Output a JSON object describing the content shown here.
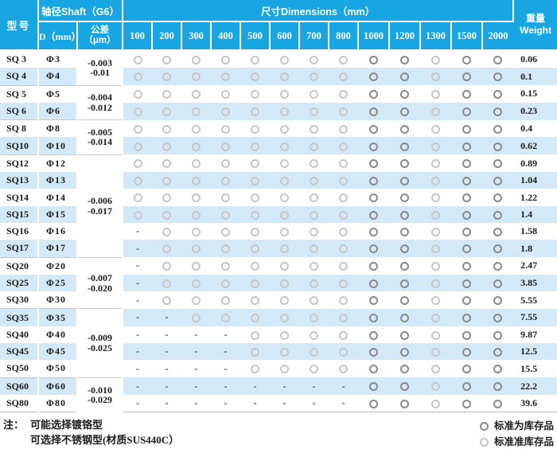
{
  "header": {
    "model": "型号",
    "shaft": "轴径Shaft（G6）",
    "d": "D（mm）",
    "tolerance_line1": "公差",
    "tolerance_line2": "（μm）",
    "dimensions": "尺寸Dimensions（mm）",
    "dim_columns": [
      "100",
      "200",
      "300",
      "400",
      "500",
      "600",
      "700",
      "800",
      "1000",
      "1200",
      "1300",
      "1500",
      "2000"
    ],
    "weight_cn": "重量",
    "weight_en": "Weight"
  },
  "tolerance_groups": [
    {
      "span": 2,
      "lines": [
        "-0.003",
        "-0.01"
      ]
    },
    {
      "span": 2,
      "lines": [
        "-0.004",
        "-0.012"
      ]
    },
    {
      "span": 2,
      "lines": [
        "-0.005",
        "-0.014"
      ]
    },
    {
      "span": 6,
      "lines": [
        "-0.006",
        "-0.017"
      ]
    },
    {
      "span": 3,
      "lines": [
        "-0.007",
        "-0.020"
      ]
    },
    {
      "span": 4,
      "lines": [
        "-0.009",
        "-0.025"
      ]
    },
    {
      "span": 2,
      "lines": [
        "-0.010",
        "-0.029"
      ]
    }
  ],
  "symbol_meanings": {
    "D": "standard-stock-circle",
    "L": "semi-standard-stock-circle",
    "-": "not-available-dash"
  },
  "rows": [
    {
      "model": "SQ 3",
      "dia": "Φ3",
      "cells": [
        "L",
        "L",
        "L",
        "L",
        "L",
        "L",
        "L",
        "L",
        "D",
        "D",
        "L",
        "D",
        "D"
      ],
      "weight": "0.06"
    },
    {
      "model": "SQ 4",
      "dia": "Φ4",
      "cells": [
        "L",
        "L",
        "L",
        "L",
        "L",
        "L",
        "L",
        "L",
        "D",
        "D",
        "L",
        "D",
        "D"
      ],
      "weight": "0.1"
    },
    {
      "model": "SQ 5",
      "dia": "Φ5",
      "cells": [
        "L",
        "L",
        "L",
        "L",
        "L",
        "L",
        "L",
        "L",
        "D",
        "D",
        "L",
        "D",
        "D"
      ],
      "weight": "0.15"
    },
    {
      "model": "SQ 6",
      "dia": "Φ6",
      "cells": [
        "L",
        "L",
        "L",
        "L",
        "L",
        "L",
        "L",
        "L",
        "D",
        "D",
        "L",
        "D",
        "D"
      ],
      "weight": "0.23"
    },
    {
      "model": "SQ 8",
      "dia": "Φ8",
      "cells": [
        "L",
        "L",
        "L",
        "L",
        "L",
        "L",
        "L",
        "L",
        "D",
        "D",
        "L",
        "D",
        "D"
      ],
      "weight": "0.4"
    },
    {
      "model": "SQ10",
      "dia": "Φ10",
      "cells": [
        "L",
        "L",
        "L",
        "L",
        "L",
        "L",
        "L",
        "L",
        "D",
        "D",
        "L",
        "D",
        "D"
      ],
      "weight": "0.62"
    },
    {
      "model": "SQ12",
      "dia": "Φ12",
      "cells": [
        "L",
        "L",
        "L",
        "L",
        "L",
        "L",
        "L",
        "L",
        "D",
        "D",
        "L",
        "D",
        "D"
      ],
      "weight": "0.89"
    },
    {
      "model": "SQ13",
      "dia": "Φ13",
      "cells": [
        "L",
        "L",
        "L",
        "L",
        "L",
        "L",
        "L",
        "L",
        "D",
        "D",
        "L",
        "D",
        "D"
      ],
      "weight": "1.04"
    },
    {
      "model": "SQ14",
      "dia": "Φ14",
      "cells": [
        "L",
        "L",
        "L",
        "L",
        "L",
        "L",
        "L",
        "L",
        "D",
        "D",
        "L",
        "D",
        "D"
      ],
      "weight": "1.22"
    },
    {
      "model": "SQ15",
      "dia": "Φ15",
      "cells": [
        "L",
        "L",
        "L",
        "L",
        "L",
        "L",
        "L",
        "L",
        "D",
        "D",
        "L",
        "D",
        "D"
      ],
      "weight": "1.4"
    },
    {
      "model": "SQ16",
      "dia": "Φ16",
      "cells": [
        "-",
        "L",
        "L",
        "L",
        "L",
        "L",
        "L",
        "L",
        "D",
        "D",
        "L",
        "D",
        "D"
      ],
      "weight": "1.58"
    },
    {
      "model": "SQ17",
      "dia": "Φ17",
      "cells": [
        "-",
        "L",
        "L",
        "L",
        "L",
        "L",
        "L",
        "L",
        "D",
        "D",
        "L",
        "D",
        "D"
      ],
      "weight": "1.8"
    },
    {
      "model": "SQ20",
      "dia": "Φ20",
      "cells": [
        "-",
        "L",
        "L",
        "L",
        "L",
        "L",
        "L",
        "L",
        "D",
        "D",
        "L",
        "D",
        "D"
      ],
      "weight": "2.47"
    },
    {
      "model": "SQ25",
      "dia": "Φ25",
      "cells": [
        "-",
        "L",
        "L",
        "L",
        "L",
        "L",
        "L",
        "L",
        "D",
        "D",
        "L",
        "D",
        "D"
      ],
      "weight": "3.85"
    },
    {
      "model": "SQ30",
      "dia": "Φ30",
      "cells": [
        "-",
        "L",
        "L",
        "L",
        "L",
        "L",
        "L",
        "L",
        "D",
        "D",
        "L",
        "D",
        "D"
      ],
      "weight": "5.55"
    },
    {
      "model": "SQ35",
      "dia": "Φ35",
      "cells": [
        "-",
        "-",
        "L",
        "L",
        "L",
        "L",
        "L",
        "L",
        "D",
        "D",
        "L",
        "D",
        "D"
      ],
      "weight": "7.55"
    },
    {
      "model": "SQ40",
      "dia": "Φ40",
      "cells": [
        "-",
        "-",
        "-",
        "-",
        "L",
        "L",
        "L",
        "L",
        "D",
        "D",
        "L",
        "D",
        "D"
      ],
      "weight": "9.87"
    },
    {
      "model": "SQ45",
      "dia": "Φ45",
      "cells": [
        "-",
        "-",
        "-",
        "-",
        "L",
        "L",
        "L",
        "L",
        "D",
        "D",
        "L",
        "D",
        "D"
      ],
      "weight": "12.5"
    },
    {
      "model": "SQ50",
      "dia": "Φ50",
      "cells": [
        "-",
        "-",
        "-",
        "-",
        "L",
        "L",
        "L",
        "L",
        "D",
        "D",
        "L",
        "D",
        "D"
      ],
      "weight": "15.5"
    },
    {
      "model": "SQ60",
      "dia": "Φ60",
      "cells": [
        "-",
        "-",
        "-",
        "-",
        "-",
        "-",
        "-",
        "-",
        "D",
        "D",
        "L",
        "D",
        "D"
      ],
      "weight": "22.2"
    },
    {
      "model": "SQ80",
      "dia": "Φ80",
      "cells": [
        "-",
        "-",
        "-",
        "-",
        "-",
        "-",
        "-",
        "-",
        "D",
        "D",
        "L",
        "D",
        "D"
      ],
      "weight": "39.6"
    }
  ],
  "notes": {
    "prefix": "注：",
    "lines": [
      "可能选择镀铬型",
      "可选择不锈钢型(材质SUS440C）"
    ]
  },
  "legend": [
    {
      "symbol": "standard-stock-circle",
      "label": "标准为库存品"
    },
    {
      "symbol": "semi-standard-stock-circle",
      "label": "标准准库存品"
    }
  ],
  "colors": {
    "header_bg": "#17a6e2",
    "stripe_bg": "#d3e9f8",
    "circle_standard": "#8a8a8a",
    "circle_semi": "#c6c6c6",
    "text": "#1c1c1c"
  }
}
